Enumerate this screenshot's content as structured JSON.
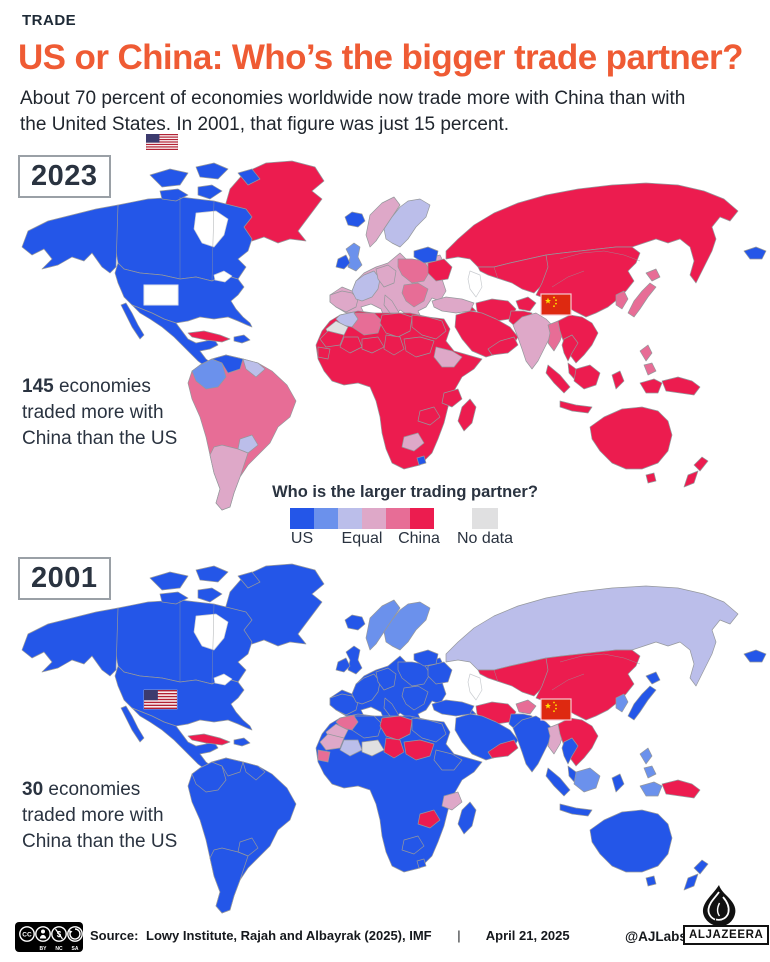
{
  "page": {
    "kicker": "TRADE",
    "title": "US or China: Who’s the bigger trade partner?",
    "subtitle_line1": "About 70 percent of economies worldwide now trade more with China than with",
    "subtitle_line2": "the United States. In 2001, that figure was just 15 percent."
  },
  "legend": {
    "title": "Who is the larger trading partner?",
    "label_us": "US",
    "label_equal": "Equal",
    "label_china": "China",
    "label_nodata": "No data"
  },
  "palette": {
    "us": "#2456E8",
    "lean_us": "#6B91EC",
    "equal_us": "#BBBEEA",
    "equal_china": "#DEA8C8",
    "lean_china": "#E76D96",
    "china": "#EC1C4F",
    "nodata": "#E0E0E1",
    "water": "#FFFFFF",
    "border": "#95989C",
    "accent_orange": "#EF5B34",
    "ink": "#1E2A36"
  },
  "chart_data": [
    {
      "type": "heatmap",
      "subtype": "choropleth_world",
      "year": "2023",
      "stat_value": "145",
      "stat_line1": "economies",
      "stat_line2": "traded more with",
      "stat_line3": "China than the US",
      "categories": [
        "US",
        "Leans US",
        "Equal (US side)",
        "Equal (China side)",
        "Leans China",
        "China",
        "No data"
      ],
      "regions": {
        "russia": "china",
        "centralasia": "china",
        "china_region": "china",
        "levant_iraq": "china",
        "iran": "china",
        "afghanistan": "china",
        "pakistan": "china",
        "arabia": "china",
        "yemen_oman": "china",
        "india": "equal_china",
        "myanmar": "lean_china",
        "seasia": "china",
        "thailand": "china",
        "malaysia": "china",
        "sumatra": "china",
        "java": "china",
        "borneo": "china",
        "sulawesi": "china",
        "papua_west": "china",
        "png": "china",
        "philippines": "lean_china",
        "korea": "lean_china",
        "japan": "lean_china",
        "bering_alaska": "us",
        "europe_base": "equal_china",
        "iberia": "equal_china",
        "france": "equal_us",
        "germany": "equal_china",
        "italy": "equal_china",
        "poland_cz": "lean_china",
        "balkans": "lean_china",
        "ukraine": "china",
        "baltics_belarus": "us",
        "norway": "equal_china",
        "sweden_finland": "equal_us",
        "uk": "lean_us",
        "ireland": "us",
        "turkey": "equal_china",
        "africa_base": "china",
        "morocco": "equal_us",
        "wsahara": "nodata",
        "algeria": "lean_china",
        "libya": "china",
        "egypt": "china",
        "mauritania": "china",
        "mali": "china",
        "niger": "china",
        "chad": "china",
        "sudan": "china",
        "ethiopia": "equal_china",
        "senegal_guinea": "china",
        "tanzania": "china",
        "zambia": "china",
        "botswana": "equal_china",
        "madagascar": "china",
        "lesotho": "us",
        "greenland": "china",
        "iceland": "us",
        "canada": "us",
        "hudson_bay": "water",
        "arctic_islands": "us",
        "alaska": "us",
        "usa": "us",
        "great_lakes": "water",
        "baja": "us",
        "mexico_ca": "us",
        "cuba": "china",
        "hispaniola": "us",
        "sa_base": "lean_china",
        "colombia": "lean_us",
        "venezuela": "us",
        "guyanas": "equal_us",
        "paraguay": "equal_us",
        "southern_cone": "equal_china",
        "australia": "china",
        "tasmania": "china",
        "nz": "china",
        "caspian_sea": "water"
      }
    },
    {
      "type": "heatmap",
      "subtype": "choropleth_world",
      "year": "2001",
      "stat_value": "30",
      "stat_line1": "economies",
      "stat_line2": "traded more with",
      "stat_line3": "China than the US",
      "categories": [
        "US",
        "Leans US",
        "Equal (US side)",
        "Equal (China side)",
        "Leans China",
        "China",
        "No data"
      ],
      "regions": {
        "russia": "equal_us",
        "centralasia": "china",
        "china_region": "china",
        "levant_iraq": "us",
        "iran": "china",
        "afghanistan": "lean_china",
        "pakistan": "us",
        "arabia": "us",
        "yemen_oman": "china",
        "india": "us",
        "myanmar": "equal_china",
        "seasia": "china",
        "thailand": "us",
        "malaysia": "us",
        "sumatra": "us",
        "java": "us",
        "borneo": "lean_us",
        "sulawesi": "us",
        "papua_west": "lean_us",
        "png": "china",
        "philippines": "lean_us",
        "korea": "lean_us",
        "japan": "us",
        "bering_alaska": "us",
        "europe_base": "us",
        "iberia": "us",
        "france": "us",
        "germany": "us",
        "italy": "us",
        "poland_cz": "us",
        "balkans": "us",
        "ukraine": "us",
        "baltics_belarus": "us",
        "norway": "lean_us",
        "sweden_finland": "lean_us",
        "uk": "us",
        "ireland": "us",
        "turkey": "us",
        "africa_base": "us",
        "morocco": "lean_china",
        "wsahara": "equal_china",
        "algeria": "us",
        "libya": "china",
        "egypt": "us",
        "mauritania": "equal_china",
        "mali": "equal_us",
        "niger": "nodata",
        "chad": "china",
        "sudan": "china",
        "ethiopia": "us",
        "senegal_guinea": "lean_china",
        "tanzania": "equal_china",
        "zambia": "china",
        "botswana": "us",
        "madagascar": "us",
        "lesotho": "us",
        "greenland": "us",
        "iceland": "us",
        "canada": "us",
        "hudson_bay": "water",
        "arctic_islands": "us",
        "alaska": "us",
        "usa": "us",
        "great_lakes": "water",
        "baja": "us",
        "mexico_ca": "us",
        "cuba": "china",
        "hispaniola": "us",
        "sa_base": "us",
        "colombia": "us",
        "venezuela": "us",
        "guyanas": "us",
        "paraguay": "us",
        "southern_cone": "us",
        "australia": "us",
        "tasmania": "us",
        "nz": "us",
        "caspian_sea": "water"
      }
    }
  ],
  "footer": {
    "source_label": "Source:",
    "source": "Lowy Institute, Rajah and Albayrak (2025), IMF",
    "divider": "|",
    "date": "April 21, 2025",
    "handle": "@AJLabs",
    "brand": "ALJAZEERA",
    "cc_labels": [
      "BY",
      "NC",
      "SA"
    ]
  }
}
